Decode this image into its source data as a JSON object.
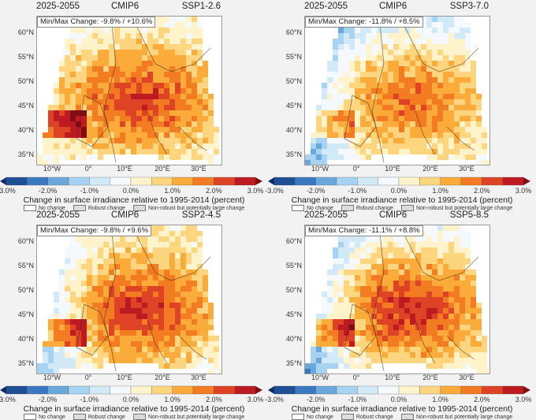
{
  "figure": {
    "period": "2025-2055",
    "ensemble": "CMIP6",
    "colorbar": {
      "title": "Change in surface irradiance relative to 1995-2014 (percent)",
      "ticks": [
        "-3.0%",
        "-2.0%",
        "-1.0%",
        "0.0%",
        "1.0%",
        "2.0%",
        "3.0%"
      ],
      "bin_edges_percent": [
        -3.0,
        -2.5,
        -2.0,
        -1.5,
        -1.0,
        -0.5,
        0.0,
        0.5,
        1.0,
        1.5,
        2.0,
        2.5,
        3.0
      ],
      "colors": [
        "#0d2a6b",
        "#1f4e96",
        "#3b78c2",
        "#6aa8dc",
        "#a6d3f1",
        "#d2e9f8",
        "#f4f9fd",
        "#fff3cc",
        "#fdd57e",
        "#fbab39",
        "#f37b22",
        "#de4326",
        "#be1a22",
        "#7f0d13"
      ],
      "extend": "both"
    },
    "legend": [
      {
        "key": "none",
        "label": "No change"
      },
      {
        "key": "robust",
        "label": "Robust change"
      },
      {
        "key": "nonrobust",
        "label": "Non-robust but potentially large change"
      }
    ],
    "lat_labels": [
      "60°N",
      "55°N",
      "50°N",
      "45°N",
      "40°N",
      "35°N"
    ],
    "lon_labels": [
      "10°W",
      "0°",
      "10°E",
      "20°E",
      "30°E"
    ]
  },
  "panels": [
    {
      "scenario": "SSP1-2.6",
      "minmax": "Min/Max Change: -9.8% / +10.6%",
      "min": -9.8,
      "max": 10.6,
      "west_level": 0.4,
      "center_level": 2.6,
      "north_level": 0.6
    },
    {
      "scenario": "SSP3-7.0",
      "minmax": "Min/Max Change: -11.8% / +8.5%",
      "min": -11.8,
      "max": 8.5,
      "west_level": -1.2,
      "center_level": 2.0,
      "north_level": -0.4
    },
    {
      "scenario": "SSP2-4.5",
      "minmax": "Min/Max Change: -9.8% / +9.6%",
      "min": -9.8,
      "max": 9.6,
      "west_level": -1.0,
      "center_level": 2.7,
      "north_level": 0.8
    },
    {
      "scenario": "SSP5-8.5",
      "minmax": "Min/Max Change: -11.1% / +8.8%",
      "min": -11.1,
      "max": 8.8,
      "west_level": -1.4,
      "center_level": 2.8,
      "north_level": 0.2
    }
  ],
  "chart_data": {
    "type": "heatmap",
    "title": "Change in surface irradiance relative to 1995-2014 (percent), 2025-2055, CMIP6",
    "panels": [
      "SSP1-2.6",
      "SSP3-7.0",
      "SSP2-4.5",
      "SSP5-8.5"
    ],
    "min_max_change_percent": [
      [
        -9.8,
        10.6
      ],
      [
        -11.8,
        8.5
      ],
      [
        -9.8,
        9.6
      ],
      [
        -11.1,
        8.8
      ]
    ],
    "color_range_percent": [
      -3.0,
      3.0
    ],
    "lat_range_deg": [
      35,
      60
    ],
    "lon_range_deg": [
      -10,
      30
    ]
  }
}
